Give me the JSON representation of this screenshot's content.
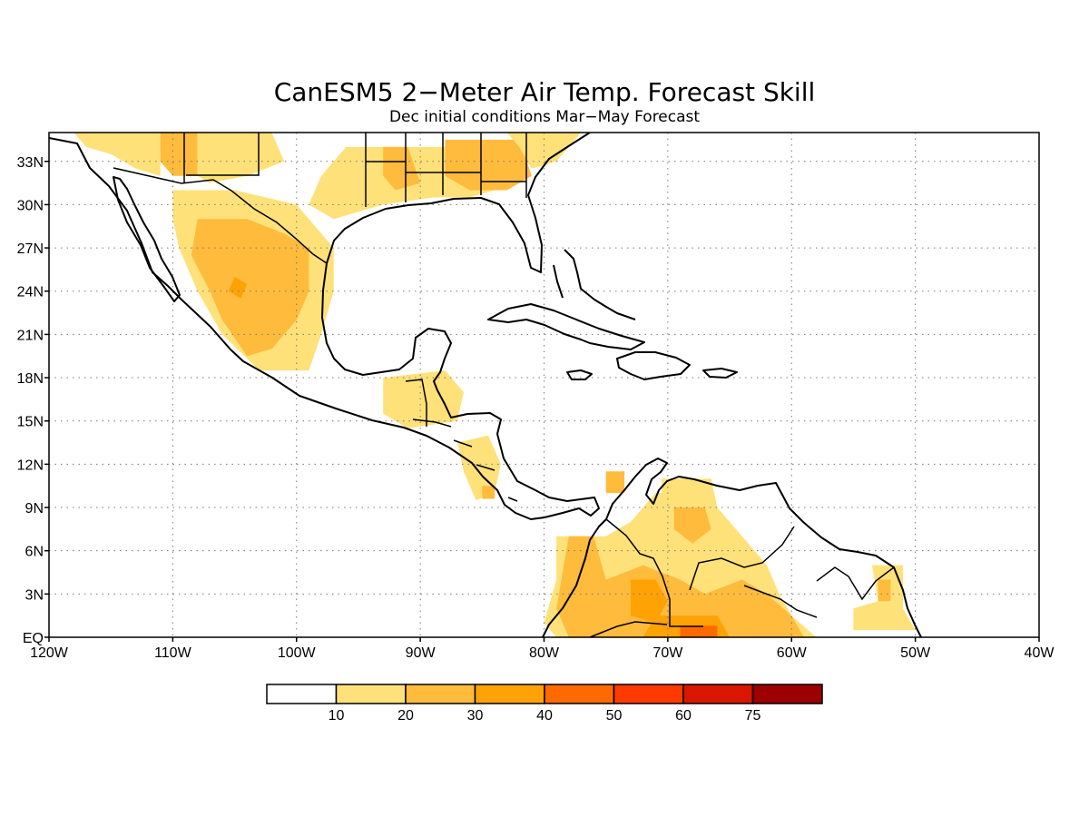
{
  "title": "CanESM5 2−Meter Air Temp. Forecast Skill",
  "subtitle": "Dec initial conditions  Mar−May Forecast",
  "map": {
    "lon_range": [
      -120,
      -40
    ],
    "lat_range": [
      0,
      35
    ],
    "x_ticks": [
      {
        "lon": -120,
        "label": "120W"
      },
      {
        "lon": -110,
        "label": "110W"
      },
      {
        "lon": -100,
        "label": "100W"
      },
      {
        "lon": -90,
        "label": "90W"
      },
      {
        "lon": -80,
        "label": "80W"
      },
      {
        "lon": -70,
        "label": "70W"
      },
      {
        "lon": -60,
        "label": "60W"
      },
      {
        "lon": -50,
        "label": "50W"
      },
      {
        "lon": -40,
        "label": "40W"
      }
    ],
    "y_ticks": [
      {
        "lat": 0,
        "label": "EQ"
      },
      {
        "lat": 3,
        "label": "3N"
      },
      {
        "lat": 6,
        "label": "6N"
      },
      {
        "lat": 9,
        "label": "9N"
      },
      {
        "lat": 12,
        "label": "12N"
      },
      {
        "lat": 15,
        "label": "15N"
      },
      {
        "lat": 18,
        "label": "18N"
      },
      {
        "lat": 21,
        "label": "21N"
      },
      {
        "lat": 24,
        "label": "24N"
      },
      {
        "lat": 27,
        "label": "27N"
      },
      {
        "lat": 30,
        "label": "30N"
      },
      {
        "lat": 33,
        "label": "33N"
      }
    ],
    "grid": true
  },
  "colorbar": {
    "levels": [
      "10",
      "20",
      "30",
      "40",
      "50",
      "60",
      "75"
    ],
    "colors": [
      "#ffffff",
      "#ffe17a",
      "#ffbb3c",
      "#ffa205",
      "#ff6a00",
      "#ff3a00",
      "#d91600",
      "#9c0000"
    ]
  },
  "skill_regions": [
    {
      "level": 1,
      "coords": [
        [
          -118,
          35
        ],
        [
          -111,
          35
        ],
        [
          -111,
          32
        ],
        [
          -113,
          32.5
        ],
        [
          -115,
          33.5
        ],
        [
          -117,
          34
        ]
      ]
    },
    {
      "level": 2,
      "coords": [
        [
          -111,
          35
        ],
        [
          -108,
          35
        ],
        [
          -108,
          32
        ],
        [
          -110,
          32
        ],
        [
          -111,
          33
        ]
      ]
    },
    {
      "level": 1,
      "coords": [
        [
          -108,
          35
        ],
        [
          -102,
          35
        ],
        [
          -101,
          33
        ],
        [
          -104,
          32
        ],
        [
          -107,
          31.5
        ],
        [
          -108,
          32
        ]
      ]
    },
    {
      "level": 1,
      "coords": [
        [
          -96,
          34
        ],
        [
          -84,
          34
        ],
        [
          -81,
          33
        ],
        [
          -84,
          31
        ],
        [
          -86,
          30.5
        ],
        [
          -89,
          30.5
        ],
        [
          -93,
          30
        ],
        [
          -97,
          29
        ],
        [
          -99,
          30
        ],
        [
          -98,
          32
        ],
        [
          -97,
          33
        ]
      ]
    },
    {
      "level": 2,
      "coords": [
        [
          -93,
          34
        ],
        [
          -91,
          34
        ],
        [
          -90,
          31.5
        ],
        [
          -92,
          31
        ],
        [
          -93,
          32
        ]
      ]
    },
    {
      "level": 2,
      "coords": [
        [
          -88,
          34.5
        ],
        [
          -82,
          34.5
        ],
        [
          -81,
          32
        ],
        [
          -83,
          31
        ],
        [
          -86,
          31
        ],
        [
          -88,
          32
        ]
      ]
    },
    {
      "level": 1,
      "coords": [
        [
          -83,
          35
        ],
        [
          -77,
          35
        ],
        [
          -79,
          33
        ],
        [
          -81,
          32.5
        ],
        [
          -82,
          34
        ]
      ]
    },
    {
      "level": 1,
      "coords": [
        [
          -110,
          31
        ],
        [
          -105,
          31
        ],
        [
          -100,
          30
        ],
        [
          -97,
          27
        ],
        [
          -97,
          24
        ],
        [
          -98,
          21
        ],
        [
          -99,
          18.5
        ],
        [
          -103,
          18.5
        ],
        [
          -106,
          21
        ],
        [
          -108,
          24
        ],
        [
          -109.5,
          27
        ],
        [
          -110,
          29
        ]
      ]
    },
    {
      "level": 2,
      "coords": [
        [
          -108,
          29
        ],
        [
          -104,
          29
        ],
        [
          -101,
          28
        ],
        [
          -99,
          27
        ],
        [
          -99,
          24
        ],
        [
          -100,
          22
        ],
        [
          -102,
          20
        ],
        [
          -104,
          19.5
        ],
        [
          -106,
          22
        ],
        [
          -107,
          24
        ],
        [
          -108.5,
          26.5
        ]
      ]
    },
    {
      "level": 3,
      "coords": [
        [
          -105,
          25
        ],
        [
          -104,
          24.5
        ],
        [
          -104.5,
          23.5
        ],
        [
          -105.5,
          24
        ]
      ]
    },
    {
      "level": 1,
      "coords": [
        [
          -93,
          18
        ],
        [
          -88,
          18.5
        ],
        [
          -86.5,
          17
        ],
        [
          -87,
          15
        ],
        [
          -91,
          14.5
        ],
        [
          -93,
          15.5
        ]
      ]
    },
    {
      "level": 1,
      "coords": [
        [
          -87,
          13.5
        ],
        [
          -84.5,
          14
        ],
        [
          -83.5,
          12
        ],
        [
          -84,
          10
        ],
        [
          -85.5,
          9.5
        ],
        [
          -86.5,
          11.5
        ]
      ]
    },
    {
      "level": 2,
      "coords": [
        [
          -85,
          10.5
        ],
        [
          -84,
          10.5
        ],
        [
          -84,
          9.6
        ],
        [
          -85,
          9.6
        ]
      ]
    },
    {
      "level": 1,
      "coords": [
        [
          -79,
          7
        ],
        [
          -75,
          7
        ],
        [
          -73,
          8
        ],
        [
          -71,
          10
        ],
        [
          -69,
          10
        ],
        [
          -66,
          9
        ],
        [
          -64,
          7
        ],
        [
          -62,
          5
        ],
        [
          -61,
          3
        ],
        [
          -60,
          1.5
        ],
        [
          -58,
          0
        ],
        [
          -79,
          0
        ],
        [
          -80,
          1
        ],
        [
          -79,
          4
        ]
      ]
    },
    {
      "level": 2,
      "coords": [
        [
          -78,
          7
        ],
        [
          -76,
          7
        ],
        [
          -75,
          4
        ],
        [
          -72,
          5
        ],
        [
          -69,
          4
        ],
        [
          -67,
          3
        ],
        [
          -64,
          4
        ],
        [
          -62,
          3
        ],
        [
          -60,
          1.5
        ],
        [
          -59,
          0
        ],
        [
          -78,
          0
        ],
        [
          -79,
          2
        ]
      ]
    },
    {
      "level": 3,
      "coords": [
        [
          -73,
          4
        ],
        [
          -71,
          4
        ],
        [
          -70,
          2.5
        ],
        [
          -71,
          1
        ],
        [
          -73,
          1.5
        ]
      ]
    },
    {
      "level": 3,
      "coords": [
        [
          -71,
          1.5
        ],
        [
          -66,
          1.5
        ],
        [
          -65,
          0
        ],
        [
          -72,
          0
        ]
      ]
    },
    {
      "level": 4,
      "coords": [
        [
          -69,
          0.8
        ],
        [
          -66,
          0.8
        ],
        [
          -66,
          0
        ],
        [
          -69,
          0
        ]
      ]
    },
    {
      "level": 1,
      "coords": [
        [
          -70.5,
          11
        ],
        [
          -66.5,
          11
        ],
        [
          -66,
          9
        ],
        [
          -66,
          7
        ],
        [
          -68,
          5.5
        ],
        [
          -70,
          6
        ],
        [
          -70.5,
          8.5
        ]
      ]
    },
    {
      "level": 2,
      "coords": [
        [
          -69.5,
          9
        ],
        [
          -67,
          9
        ],
        [
          -66.5,
          7.5
        ],
        [
          -68,
          6.5
        ],
        [
          -69.5,
          7.5
        ]
      ]
    },
    {
      "level": 2,
      "coords": [
        [
          -75,
          11.5
        ],
        [
          -73.5,
          11.5
        ],
        [
          -73.5,
          10
        ],
        [
          -75,
          10
        ]
      ]
    },
    {
      "level": 1,
      "coords": [
        [
          -53.5,
          5
        ],
        [
          -51,
          5
        ],
        [
          -51,
          2
        ],
        [
          -50,
          0.5
        ],
        [
          -55,
          0.5
        ],
        [
          -55,
          2
        ],
        [
          -53,
          2.5
        ]
      ]
    },
    {
      "level": 2,
      "coords": [
        [
          -53,
          4
        ],
        [
          -52,
          4
        ],
        [
          -52,
          2.5
        ],
        [
          -53,
          2.5
        ]
      ]
    }
  ]
}
